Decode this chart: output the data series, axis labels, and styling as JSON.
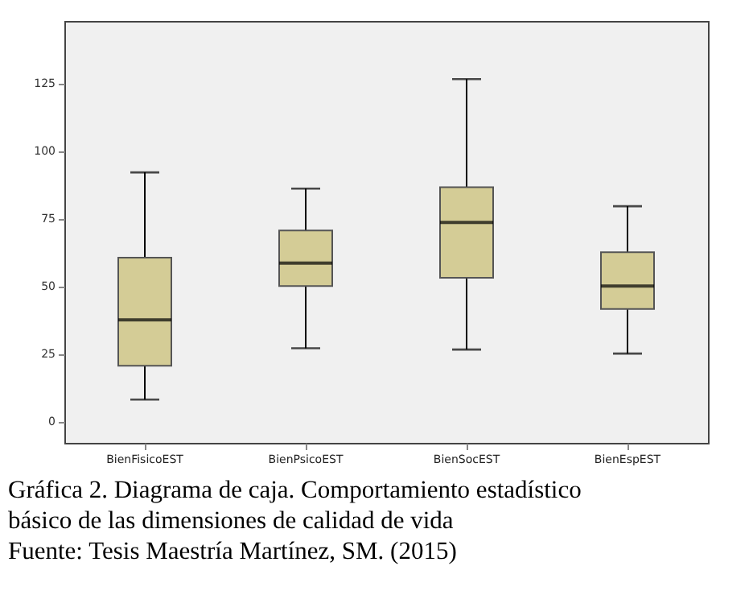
{
  "chart_data": {
    "type": "box",
    "categories": [
      "BienFisicoEST",
      "BienPsicoEST",
      "BienSocEST",
      "BienEspEST"
    ],
    "boxes": [
      {
        "low": 8,
        "q1": 20.5,
        "median": 37.5,
        "q3": 60.5,
        "high": 92
      },
      {
        "low": 27,
        "q1": 50,
        "median": 58.5,
        "q3": 70.5,
        "high": 86
      },
      {
        "low": 26.5,
        "q1": 53,
        "median": 73.5,
        "q3": 86.5,
        "high": 126.5
      },
      {
        "low": 25,
        "q1": 41.5,
        "median": 50,
        "q3": 62.5,
        "high": 79.5
      }
    ],
    "color": "#d4cc96",
    "ylim": [
      -8,
      148
    ],
    "yticks": [
      0,
      25,
      50,
      75,
      100,
      125
    ],
    "grid": false,
    "annotations": [
      "Gráfica 2. Diagrama de caja. Comportamiento estadístico básico de las dimensiones de calidad de vida",
      "Fuente: Tesis Maestría Martínez, SM. (2015)"
    ]
  }
}
